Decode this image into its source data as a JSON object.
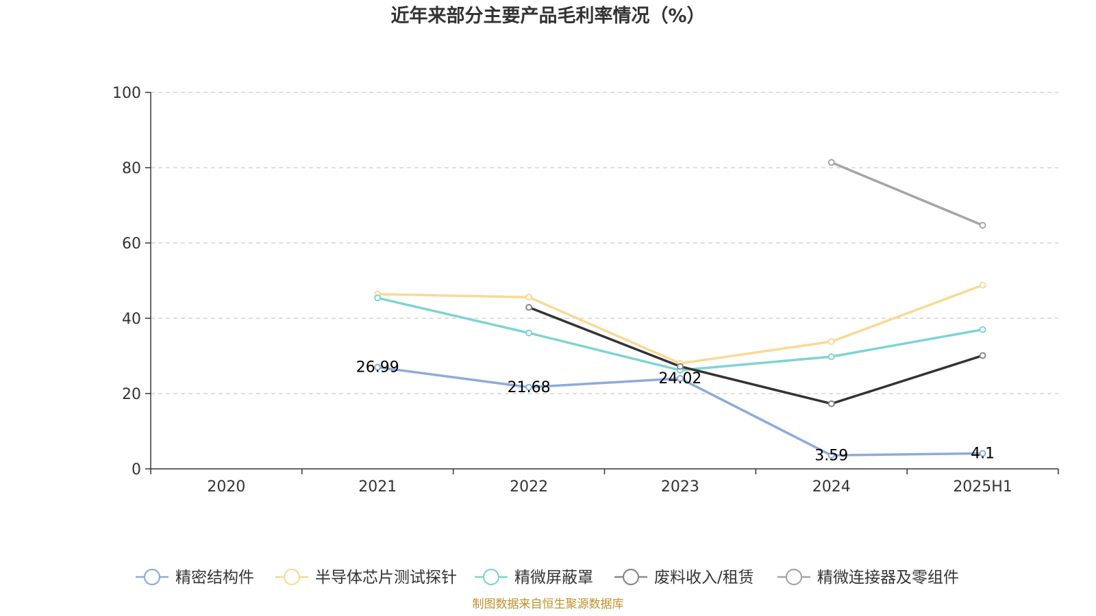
{
  "chart_data": {
    "type": "line",
    "title": "近年来部分主要产品毛利率情况（%）",
    "categories": [
      "2020",
      "2021",
      "2022",
      "2023",
      "2024",
      "2025H1"
    ],
    "ylim": [
      0,
      100
    ],
    "yticks": [
      0,
      20,
      40,
      60,
      80,
      100
    ],
    "grid": true,
    "legend_position": "bottom",
    "series": [
      {
        "name": "精密结构件",
        "color": "#8eaadb",
        "values": [
          null,
          26.99,
          21.68,
          24.02,
          3.59,
          4.1
        ],
        "labels": [
          null,
          "26.99",
          "21.68",
          "24.02",
          "3.59",
          "4.1"
        ]
      },
      {
        "name": "半导体芯片测试探针",
        "color": "#f9d993",
        "values": [
          null,
          46.4,
          45.6,
          28.0,
          33.8,
          48.8
        ],
        "labels": null
      },
      {
        "name": "精微屏蔽罩",
        "color": "#7fd3d4",
        "values": [
          null,
          45.4,
          36.1,
          26.2,
          29.8,
          37.0
        ],
        "labels": null
      },
      {
        "name": "废料收入/租赁",
        "color": "#333333",
        "values": [
          null,
          null,
          42.9,
          27.2,
          17.3,
          30.1
        ],
        "labels": null
      },
      {
        "name": "精微连接器及零组件",
        "color": "#a5a5a5",
        "values": [
          null,
          null,
          null,
          null,
          81.4,
          64.7
        ],
        "labels": null
      }
    ]
  },
  "source_note": "制图数据来自恒生聚源数据库"
}
